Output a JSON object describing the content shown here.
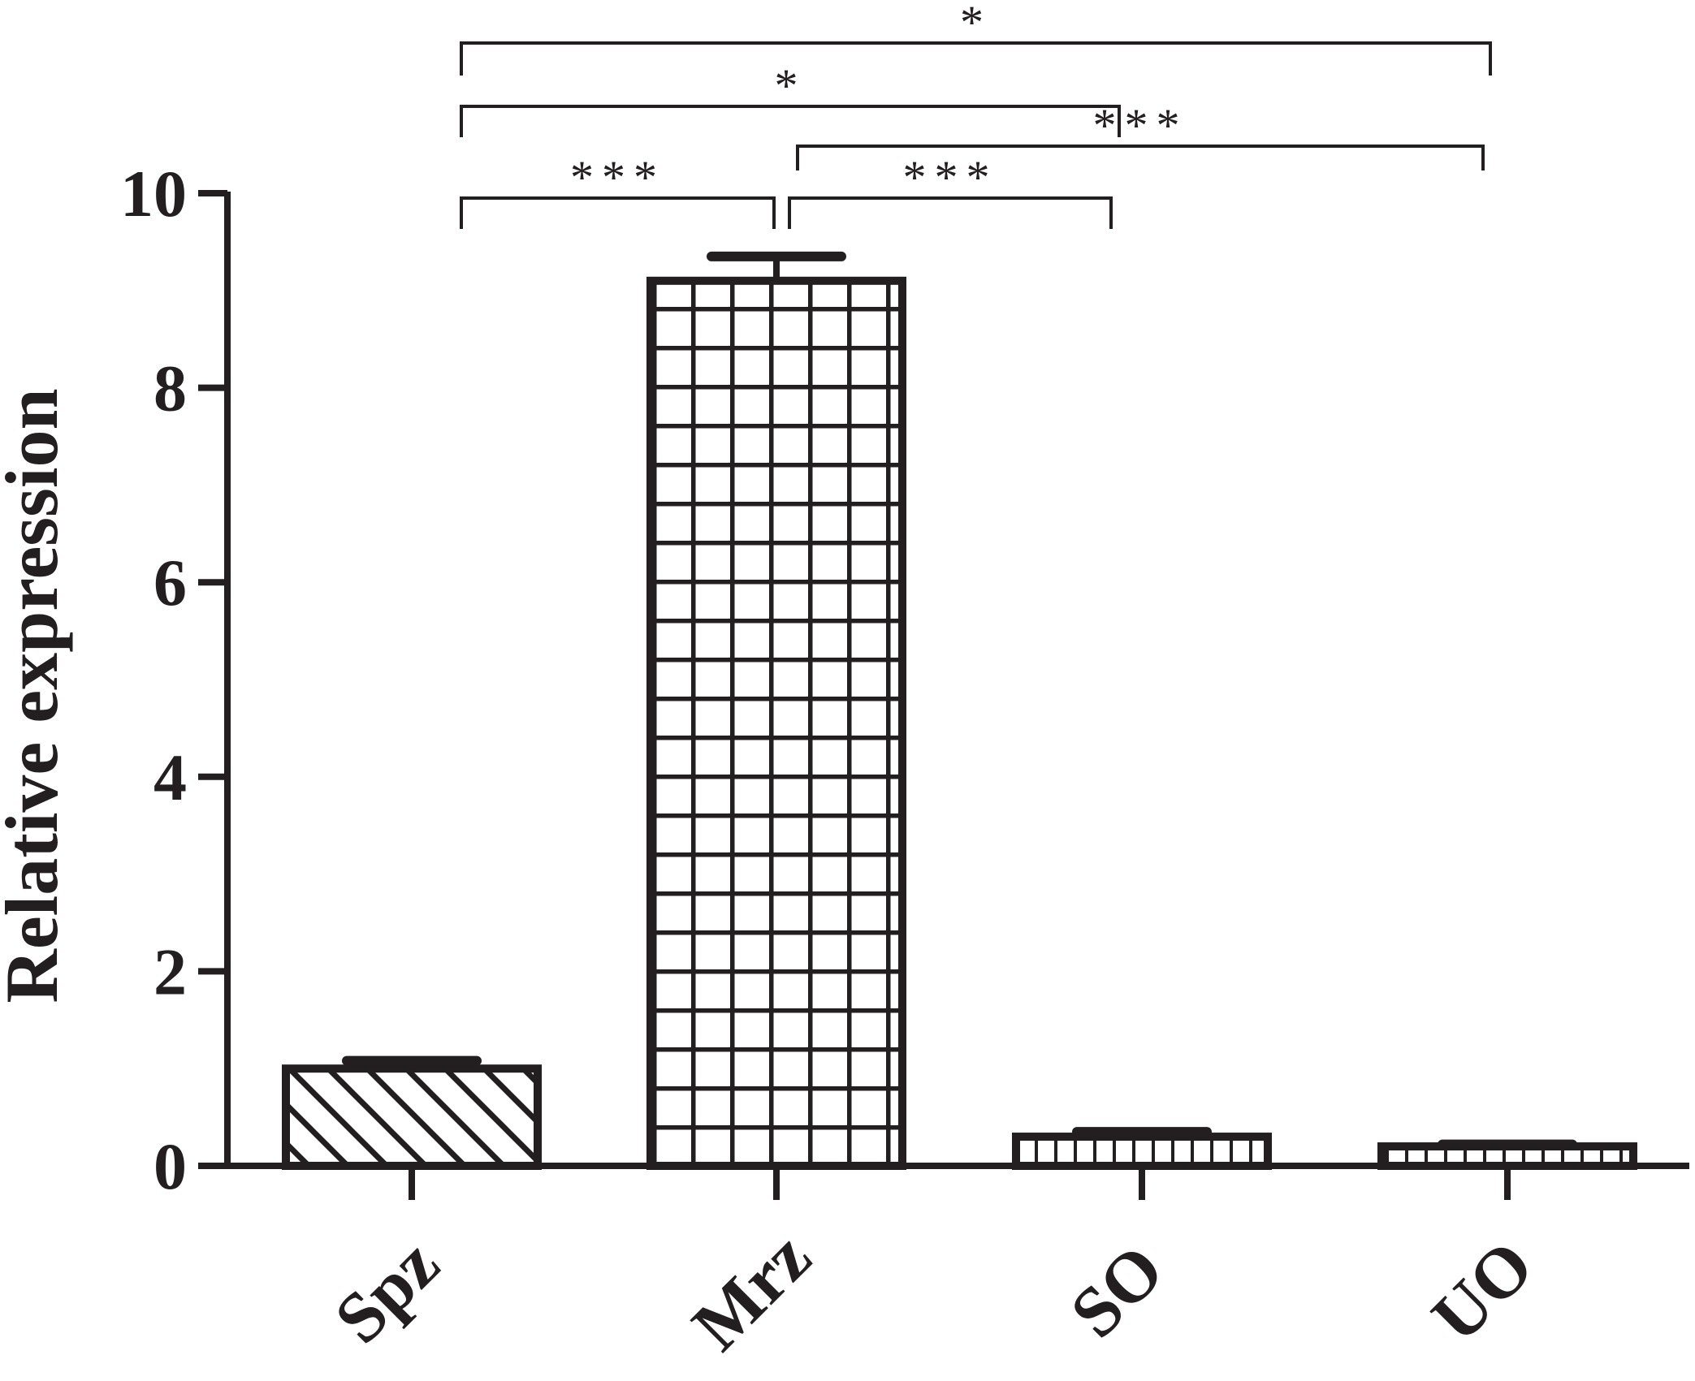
{
  "chart_data": {
    "type": "bar",
    "categories": [
      "Spz",
      "Mrz",
      "SO",
      "UO"
    ],
    "values": [
      1.0,
      9.1,
      0.3,
      0.2
    ],
    "errors": [
      0.08,
      0.25,
      0.05,
      0.02
    ],
    "patterns": [
      "diagonal",
      "grid",
      "dashes",
      "dashes"
    ],
    "ylabel": "Relative expression",
    "xlabel": "",
    "ylim": [
      0,
      10
    ],
    "yticks": [
      "0",
      "2",
      "4",
      "6",
      "8",
      "10"
    ],
    "significance": [
      {
        "from": "Spz",
        "to": "Mrz",
        "label": "***"
      },
      {
        "from": "Mrz",
        "to": "SO",
        "label": "***"
      },
      {
        "from": "Mrz",
        "to": "UO",
        "label": "***"
      },
      {
        "from": "Spz",
        "to": "SO",
        "label": "*"
      },
      {
        "from": "Spz",
        "to": "UO",
        "label": "*"
      }
    ],
    "colors": {
      "ink": "#231f20",
      "background": "#ffffff"
    }
  }
}
